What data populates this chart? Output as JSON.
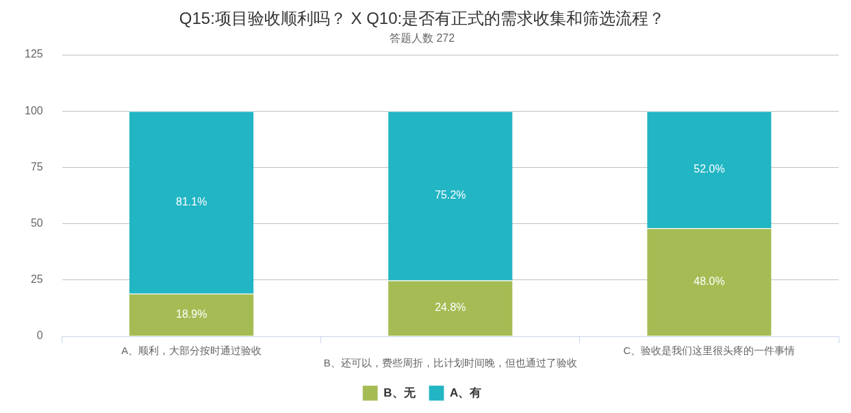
{
  "chart_data": {
    "type": "bar",
    "title": "Q15:项目验收顺利吗？ X Q10:是否有正式的需求收集和筛选流程？",
    "subtitle": "答题人数 272",
    "categories": [
      "A、顺利，大部分按时通过验收",
      "B、还可以，费些周折，比计划时间晚，但也通过了验收",
      "C、验收是我们这里很头疼的一件事情"
    ],
    "series": [
      {
        "name": "B、无",
        "color": "#a5bc54",
        "values": [
          18.9,
          24.8,
          48.0
        ],
        "value_labels": [
          "18.9%",
          "24.8%",
          "48.0%"
        ]
      },
      {
        "name": "A、有",
        "color": "#22b5c4",
        "values": [
          81.1,
          75.2,
          52.0
        ],
        "value_labels": [
          "81.1%",
          "75.2%",
          "52.0%"
        ]
      }
    ],
    "stacked": true,
    "ylim": [
      0,
      125
    ],
    "yticks": [
      0,
      25,
      50,
      75,
      100,
      125
    ],
    "grid": "y",
    "legend": "bottom"
  }
}
